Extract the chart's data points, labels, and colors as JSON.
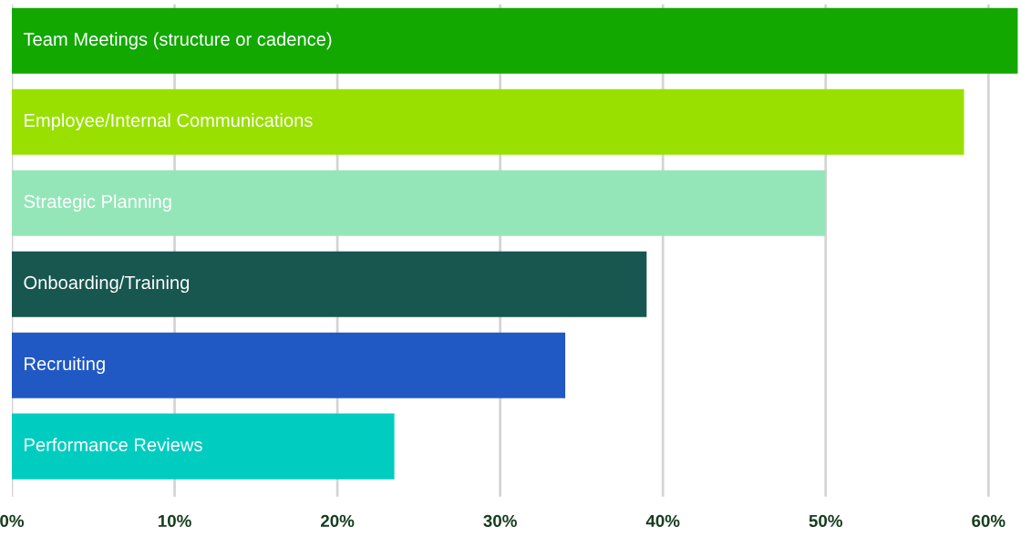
{
  "chart_data": {
    "type": "bar",
    "orientation": "horizontal",
    "categories": [
      "Team Meetings (structure or cadence)",
      "Employee/Internal Communications",
      "Strategic Planning",
      "Onboarding/Training",
      "Recruiting",
      "Performance Reviews"
    ],
    "values": [
      61.8,
      58.5,
      50,
      39,
      34,
      23.5
    ],
    "colors": [
      "#12a800",
      "#99e000",
      "#94e6b8",
      "#185650",
      "#2159c4",
      "#00cdc0"
    ],
    "xlim": [
      0,
      62
    ],
    "xticks": [
      {
        "value": 0,
        "label": "0%"
      },
      {
        "value": 10,
        "label": "10%"
      },
      {
        "value": 20,
        "label": "20%"
      },
      {
        "value": 30,
        "label": "30%"
      },
      {
        "value": 40,
        "label": "40%"
      },
      {
        "value": 50,
        "label": "50%"
      },
      {
        "value": 60,
        "label": "60%"
      }
    ],
    "grid": "x",
    "tick_labels": "x"
  }
}
